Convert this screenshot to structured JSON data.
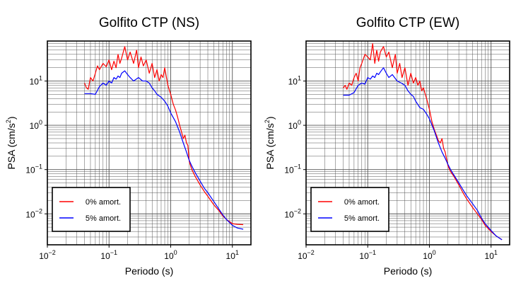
{
  "chart_data": [
    {
      "type": "line",
      "title": "Golfito CTP (NS)",
      "xlabel": "Periodo (s)",
      "ylabel": "PSA (cm/s²)",
      "ylabel_parts": {
        "main": "PSA (cm/s",
        "sup": "2",
        "close": ")"
      },
      "xscale": "log",
      "yscale": "log",
      "xlim": [
        0.01,
        20
      ],
      "ylim": [
        0.002,
        80
      ],
      "grid": true,
      "legend_position": "bottom-left",
      "x_ticks": [
        {
          "value": 0.01,
          "base": "10",
          "exp": "−2"
        },
        {
          "value": 0.1,
          "base": "10",
          "exp": "−1"
        },
        {
          "value": 1,
          "base": "10",
          "exp": "0"
        },
        {
          "value": 10,
          "base": "10",
          "exp": "1"
        }
      ],
      "y_ticks": [
        {
          "value": 0.01,
          "base": "10",
          "exp": "−2"
        },
        {
          "value": 0.1,
          "base": "10",
          "exp": "−1"
        },
        {
          "value": 1,
          "base": "10",
          "exp": "0"
        },
        {
          "value": 10,
          "base": "10",
          "exp": "1"
        }
      ],
      "series": [
        {
          "name": "0% amort.",
          "color": "#ff0000",
          "x": [
            0.04,
            0.043,
            0.046,
            0.05,
            0.055,
            0.06,
            0.065,
            0.07,
            0.08,
            0.09,
            0.1,
            0.11,
            0.12,
            0.13,
            0.14,
            0.15,
            0.16,
            0.18,
            0.2,
            0.22,
            0.25,
            0.28,
            0.3,
            0.33,
            0.36,
            0.4,
            0.45,
            0.5,
            0.55,
            0.6,
            0.65,
            0.7,
            0.75,
            0.8,
            0.9,
            1.0,
            1.1,
            1.2,
            1.3,
            1.4,
            1.5,
            1.6,
            1.7,
            1.8,
            1.9,
            2.0,
            2.2,
            2.5,
            3.0,
            3.5,
            4.0,
            5.0,
            6.0,
            7.0,
            8.0,
            10.0,
            12.0,
            15.0
          ],
          "y": [
            9,
            7,
            6.5,
            12,
            10,
            15,
            22,
            18,
            25,
            21,
            30,
            18,
            28,
            20,
            40,
            25,
            33,
            60,
            30,
            45,
            25,
            50,
            20,
            35,
            22,
            30,
            15,
            25,
            12,
            18,
            10,
            14,
            12,
            20,
            8,
            5,
            3,
            2.2,
            1.5,
            1.0,
            0.7,
            0.5,
            0.6,
            0.4,
            0.35,
            0.15,
            0.1,
            0.07,
            0.045,
            0.032,
            0.025,
            0.016,
            0.012,
            0.009,
            0.0075,
            0.006,
            0.0058,
            0.0057
          ]
        },
        {
          "name": "5% amort.",
          "color": "#0000ff",
          "x": [
            0.04,
            0.05,
            0.06,
            0.07,
            0.08,
            0.09,
            0.1,
            0.11,
            0.12,
            0.13,
            0.14,
            0.15,
            0.16,
            0.18,
            0.2,
            0.22,
            0.25,
            0.3,
            0.35,
            0.4,
            0.45,
            0.5,
            0.55,
            0.6,
            0.7,
            0.8,
            0.9,
            1.0,
            1.2,
            1.4,
            1.6,
            1.8,
            2.0,
            2.2,
            2.5,
            3.0,
            3.5,
            4.0,
            5.0,
            6.0,
            7.0,
            8.0,
            10.0,
            12.0,
            15.0
          ],
          "y": [
            5.2,
            5.2,
            5,
            7.5,
            9,
            8,
            10,
            9,
            12,
            11,
            13,
            12,
            15,
            17,
            14,
            12,
            10,
            12,
            10,
            10,
            9,
            7,
            6,
            5,
            4.3,
            3.5,
            2.7,
            1.9,
            1.2,
            0.7,
            0.4,
            0.25,
            0.16,
            0.12,
            0.085,
            0.055,
            0.038,
            0.03,
            0.019,
            0.013,
            0.0095,
            0.0075,
            0.0055,
            0.0048,
            0.0045
          ]
        }
      ]
    },
    {
      "type": "line",
      "title": "Golfito CTP (EW)",
      "xlabel": "Periodo (s)",
      "ylabel": "PSA (cm/s²)",
      "ylabel_parts": {
        "main": "PSA (cm/s",
        "sup": "2",
        "close": ")"
      },
      "xscale": "log",
      "yscale": "log",
      "xlim": [
        0.01,
        20
      ],
      "ylim": [
        0.002,
        80
      ],
      "grid": true,
      "legend_position": "bottom-left",
      "x_ticks": [
        {
          "value": 0.01,
          "base": "10",
          "exp": "−2"
        },
        {
          "value": 0.1,
          "base": "10",
          "exp": "−1"
        },
        {
          "value": 1,
          "base": "10",
          "exp": "0"
        },
        {
          "value": 10,
          "base": "10",
          "exp": "1"
        }
      ],
      "y_ticks": [
        {
          "value": 0.01,
          "base": "10",
          "exp": "−2"
        },
        {
          "value": 0.1,
          "base": "10",
          "exp": "−1"
        },
        {
          "value": 1,
          "base": "10",
          "exp": "0"
        },
        {
          "value": 10,
          "base": "10",
          "exp": "1"
        }
      ],
      "series": [
        {
          "name": "0% amort.",
          "color": "#ff0000",
          "x": [
            0.04,
            0.043,
            0.046,
            0.05,
            0.055,
            0.06,
            0.065,
            0.07,
            0.075,
            0.08,
            0.09,
            0.1,
            0.11,
            0.12,
            0.13,
            0.14,
            0.15,
            0.16,
            0.18,
            0.2,
            0.22,
            0.25,
            0.28,
            0.3,
            0.33,
            0.36,
            0.4,
            0.45,
            0.5,
            0.55,
            0.6,
            0.65,
            0.7,
            0.75,
            0.8,
            0.9,
            1.0,
            1.1,
            1.2,
            1.3,
            1.4,
            1.5,
            1.6,
            1.7,
            1.8,
            2.0,
            2.2,
            2.5,
            3.0,
            3.5,
            4.0,
            5.0,
            6.0,
            7.0,
            8.0,
            10.0,
            12.0,
            15.0
          ],
          "y": [
            7,
            8,
            6.5,
            9,
            8,
            12,
            15,
            10,
            20,
            25,
            40,
            35,
            30,
            70,
            25,
            50,
            28,
            45,
            60,
            35,
            45,
            20,
            40,
            15,
            25,
            12,
            20,
            8,
            15,
            9,
            12,
            8,
            10,
            6,
            7,
            4,
            2.3,
            1.2,
            0.8,
            0.6,
            0.45,
            0.4,
            0.5,
            0.3,
            0.25,
            0.12,
            0.09,
            0.07,
            0.045,
            0.03,
            0.022,
            0.014,
            0.01,
            0.0075,
            0.0055,
            0.004,
            0.0032,
            0.0026
          ]
        },
        {
          "name": "5% amort.",
          "color": "#0000ff",
          "x": [
            0.04,
            0.05,
            0.06,
            0.07,
            0.08,
            0.09,
            0.1,
            0.11,
            0.12,
            0.13,
            0.14,
            0.15,
            0.16,
            0.18,
            0.2,
            0.22,
            0.25,
            0.3,
            0.35,
            0.4,
            0.45,
            0.5,
            0.55,
            0.6,
            0.7,
            0.8,
            0.9,
            1.0,
            1.2,
            1.4,
            1.6,
            1.8,
            2.0,
            2.2,
            2.5,
            3.0,
            3.5,
            4.0,
            5.0,
            6.0,
            7.0,
            8.0,
            10.0,
            12.0,
            15.0
          ],
          "y": [
            4.8,
            4.8,
            5.5,
            8,
            9,
            8.5,
            12,
            11,
            13,
            12,
            15,
            14,
            16,
            20,
            15,
            12,
            14,
            10,
            9,
            8,
            6,
            5,
            4.5,
            3.5,
            2.5,
            2.3,
            1.8,
            1.4,
            0.75,
            0.4,
            0.25,
            0.18,
            0.13,
            0.1,
            0.075,
            0.05,
            0.035,
            0.026,
            0.017,
            0.012,
            0.008,
            0.006,
            0.0042,
            0.0032,
            0.0026
          ]
        }
      ]
    }
  ]
}
